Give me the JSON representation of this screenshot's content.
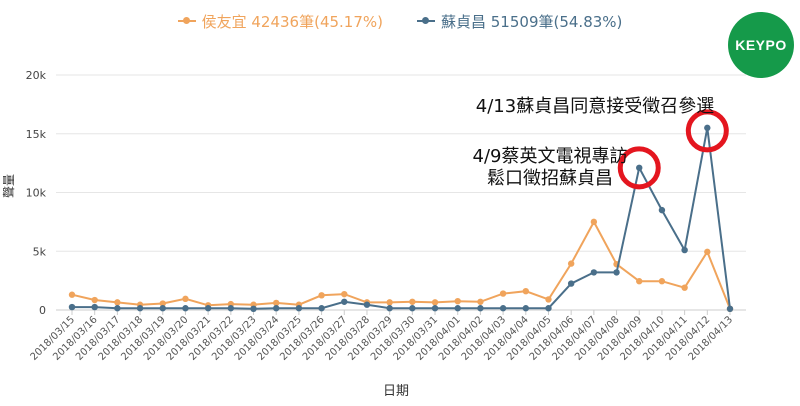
{
  "legend": {
    "items": [
      {
        "label": "侯友宜 42436筆(45.17%)",
        "color": "#f0a45c"
      },
      {
        "label": "蘇貞昌 51509筆(54.83%)",
        "color": "#4a6f8a"
      }
    ]
  },
  "logo": {
    "text": "KEYPO",
    "color": "#159a4a"
  },
  "annotations": {
    "a1": "4/13蘇貞昌同意接受徵召參選",
    "a2_line1": "4/9蔡英文電視專訪",
    "a2_line2": "鬆口徵招蘇貞昌",
    "circle_color": "#e4161f"
  },
  "chart_data": {
    "type": "line",
    "title": "",
    "xlabel": "日期",
    "ylabel": "聲量",
    "ylim": [
      0,
      20000
    ],
    "yticks": [
      0,
      5000,
      10000,
      15000,
      20000
    ],
    "ytick_labels": [
      "0",
      "5k",
      "10k",
      "15k",
      "20k"
    ],
    "grid": true,
    "legend_position": "top",
    "categories": [
      "2018/03/15",
      "2018/03/16",
      "2018/03/17",
      "2018/03/18",
      "2018/03/19",
      "2018/03/20",
      "2018/03/21",
      "2018/03/22",
      "2018/03/23",
      "2018/03/24",
      "2018/03/25",
      "2018/03/26",
      "2018/03/27",
      "2018/03/28",
      "2018/03/29",
      "2018/03/30",
      "2018/03/31",
      "2018/04/01",
      "2018/04/02",
      "2018/04/03",
      "2018/04/04",
      "2018/04/05",
      "2018/04/06",
      "2018/04/07",
      "2018/04/08",
      "2018/04/09",
      "2018/04/10",
      "2018/04/11",
      "2018/04/12",
      "2018/04/13"
    ],
    "series": [
      {
        "name": "侯友宜",
        "color": "#f0a45c",
        "values": [
          1300,
          850,
          650,
          450,
          550,
          950,
          400,
          500,
          450,
          600,
          450,
          1250,
          1350,
          650,
          650,
          700,
          650,
          750,
          700,
          1400,
          1600,
          900,
          3950,
          7500,
          3900,
          2450,
          2450,
          1900,
          4950,
          100
        ]
      },
      {
        "name": "蘇貞昌",
        "color": "#4a6f8a",
        "values": [
          250,
          250,
          150,
          150,
          150,
          150,
          150,
          150,
          100,
          150,
          150,
          150,
          700,
          450,
          150,
          150,
          150,
          150,
          150,
          150,
          150,
          150,
          2250,
          3200,
          3200,
          12100,
          8500,
          5100,
          15500,
          100
        ]
      }
    ],
    "highlighted_points": [
      {
        "series": "蘇貞昌",
        "category": "2018/04/09"
      },
      {
        "series": "蘇貞昌",
        "category": "2018/04/12"
      }
    ]
  }
}
